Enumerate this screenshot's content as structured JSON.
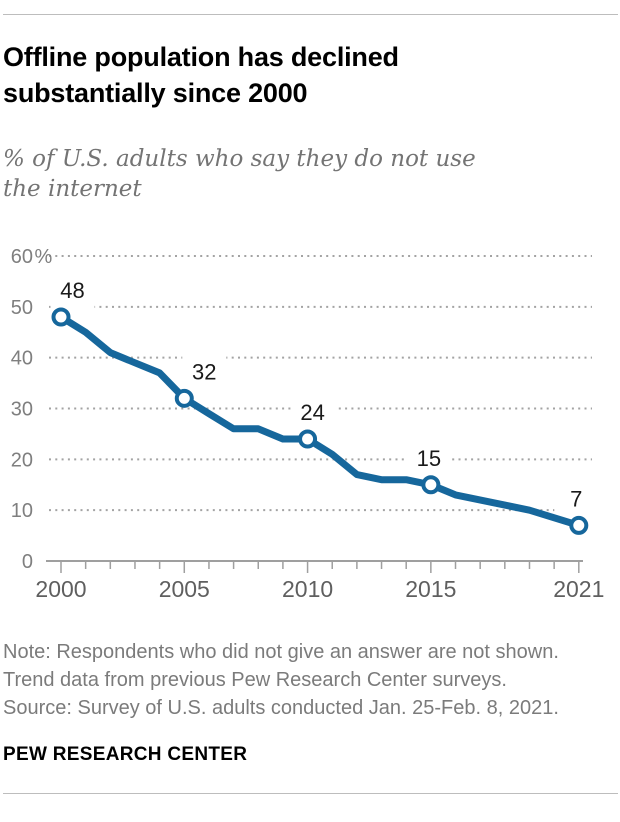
{
  "header": {
    "title_line1": "Offline population has declined",
    "title_line2": "substantially since 2000",
    "subtitle_line1": "% of U.S. adults who say they do not use",
    "subtitle_line2": "the internet"
  },
  "chart_data": {
    "type": "line",
    "title": "Offline population has declined substantially since 2000",
    "subtitle": "% of U.S. adults who say they do not use the internet",
    "x": [
      2000,
      2001,
      2002,
      2003,
      2004,
      2005,
      2006,
      2007,
      2008,
      2009,
      2010,
      2011,
      2012,
      2013,
      2014,
      2015,
      2016,
      2018,
      2019,
      2021
    ],
    "values": [
      48,
      45,
      41,
      39,
      37,
      32,
      29,
      26,
      26,
      24,
      24,
      21,
      17,
      16,
      16,
      15,
      13,
      11,
      10,
      7
    ],
    "labeled_points": [
      {
        "x": 2000,
        "value": 48,
        "dx": 11.5
      },
      {
        "x": 2005,
        "value": 32,
        "dx": 20
      },
      {
        "x": 2010,
        "value": 24,
        "dx": 5
      },
      {
        "x": 2015,
        "value": 15,
        "dx": -2
      },
      {
        "x": 2021,
        "value": 7,
        "dx": -2.5
      }
    ],
    "xlim": [
      2000,
      2021
    ],
    "ylim": [
      0,
      60
    ],
    "yticks": [
      0,
      10,
      20,
      30,
      40,
      50,
      60
    ],
    "ytick_top_suffix": "%",
    "xtick_labels": [
      2000,
      2005,
      2010,
      2015,
      2021
    ],
    "grid": "dotted-horizontal",
    "legend": "none",
    "colors": {
      "line": "#16679c",
      "marker_fill": "#ffffff",
      "grid": "#a3a3a3",
      "axis": "#9f9f9f",
      "y_tick_label": "#7f7f7f",
      "x_tick_label": "#5f5f5f",
      "data_label": "#1a1a1a"
    }
  },
  "footer": {
    "note_lines": [
      "Note: Respondents who did not give an answer are not shown.",
      "Trend data from previous Pew Research Center surveys.",
      "Source: Survey of U.S. adults conducted Jan. 25-Feb. 8, 2021."
    ],
    "brand": "PEW RESEARCH CENTER"
  }
}
